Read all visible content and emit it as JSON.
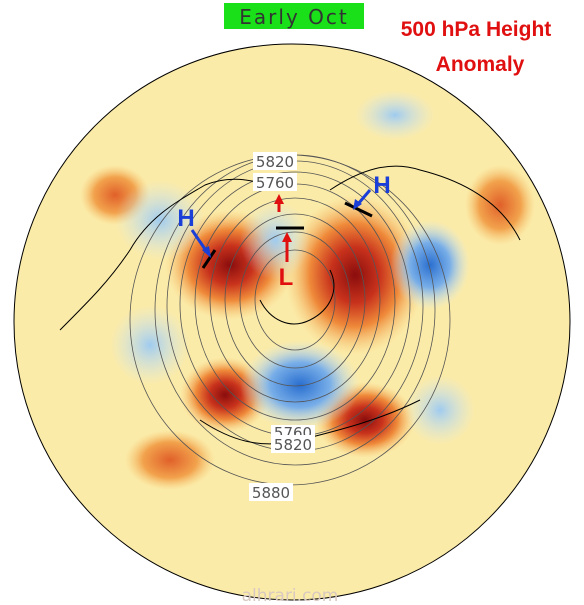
{
  "header": {
    "period": "Early Oct",
    "title_line1": "500 hPa Height",
    "title_line2": "Anomaly"
  },
  "map": {
    "contour_labels": [
      5820,
      5760,
      5760,
      5820,
      5880
    ],
    "markers": [
      "H",
      "H",
      "L"
    ]
  },
  "footer": {
    "watermark": "alhrari.com"
  }
}
